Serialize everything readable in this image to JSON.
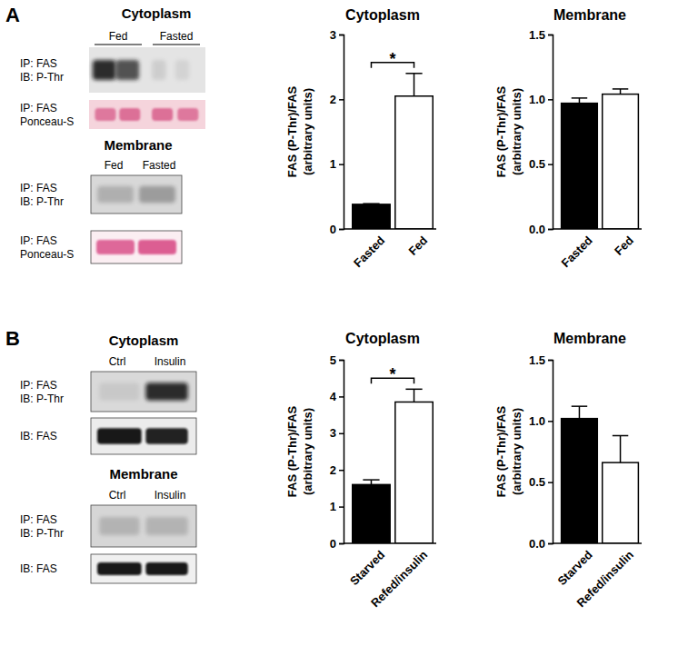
{
  "chart_data": [
    {
      "type": "bar",
      "title": "Cytoplasm",
      "y_label": [
        "FAS (P-Thr)/FAS",
        "(arbitrary units)"
      ],
      "categories": [
        "Fasted",
        "Fed"
      ],
      "values": [
        0.38,
        2.05
      ],
      "errors": [
        0.01,
        0.35
      ],
      "colors": [
        "#000000",
        "#ffffff"
      ],
      "ylim": [
        0,
        3
      ],
      "yticks": [
        0,
        1,
        2,
        3
      ],
      "annotation": "*"
    },
    {
      "type": "bar",
      "title": "Membrane",
      "y_label": [
        "FAS (P-Thr)/FAS",
        "(arbitrary units)"
      ],
      "categories": [
        "Fasted",
        "Fed"
      ],
      "values": [
        0.97,
        1.04
      ],
      "errors": [
        0.04,
        0.04
      ],
      "colors": [
        "#000000",
        "#ffffff"
      ],
      "ylim": [
        0,
        1.5
      ],
      "yticks": [
        {
          "value": 0,
          "label": "0.0"
        },
        {
          "value": 0.5,
          "label": "0.5"
        },
        {
          "value": 1,
          "label": "1.0"
        },
        {
          "value": 1.5,
          "label": "1.5"
        }
      ]
    },
    {
      "type": "bar",
      "title": "Cytoplasm",
      "y_label": [
        "FAS (P-Thr)/FAS",
        "(arbitrary units)"
      ],
      "categories": [
        "Starved",
        "Refed/insulin"
      ],
      "values": [
        1.6,
        3.85
      ],
      "errors": [
        0.13,
        0.35
      ],
      "colors": [
        "#000000",
        "#ffffff"
      ],
      "ylim": [
        0,
        5
      ],
      "yticks": [
        0,
        1,
        2,
        3,
        4,
        5
      ],
      "annotation": "*"
    },
    {
      "type": "bar",
      "title": "Membrane",
      "y_label": [
        "FAS (P-Thr)/FAS",
        "(arbitrary units)"
      ],
      "categories": [
        "Starved",
        "Refed/insulin"
      ],
      "values": [
        1.02,
        0.66
      ],
      "errors": [
        0.1,
        0.22
      ],
      "colors": [
        "#000000",
        "#ffffff"
      ],
      "ylim": [
        0,
        1.5
      ],
      "yticks": [
        {
          "value": 0,
          "label": "0.0"
        },
        {
          "value": 0.5,
          "label": "0.5"
        },
        {
          "value": 1,
          "label": "1.0"
        },
        {
          "value": 1.5,
          "label": "1.5"
        }
      ]
    }
  ],
  "panel_labels": [
    "A",
    "B"
  ],
  "blots": [
    {
      "title": "Cytoplasm",
      "lanes": [
        "Fed",
        "Fasted"
      ],
      "rows": [
        [
          "IP: FAS",
          "IB: P-Thr"
        ],
        [
          "IP: FAS",
          "Ponceau-S"
        ]
      ]
    },
    {
      "title": "Membrane",
      "lanes": [
        "Fed",
        "Fasted"
      ],
      "rows": [
        [
          "IP: FAS",
          "IB: P-Thr"
        ],
        [
          "IP: FAS",
          "Ponceau-S"
        ]
      ]
    },
    {
      "title": "Cytoplasm",
      "lanes": [
        "Ctrl",
        "Insulin"
      ],
      "rows": [
        [
          "IP: FAS",
          "IB: P-Thr"
        ],
        [
          "IB: FAS"
        ]
      ]
    },
    {
      "title": "Membrane",
      "lanes": [
        "Ctrl",
        "Insulin"
      ],
      "rows": [
        [
          "IP: FAS",
          "IB: P-Thr"
        ],
        [
          "IB: FAS"
        ]
      ]
    }
  ]
}
